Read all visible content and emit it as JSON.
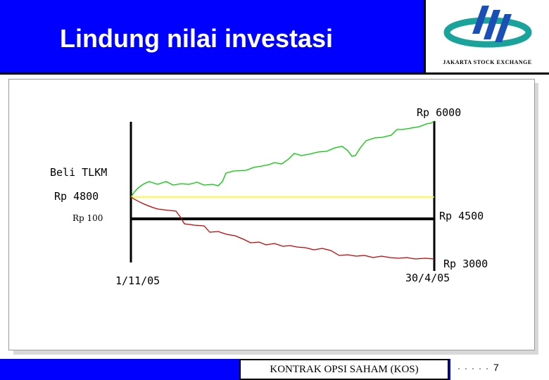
{
  "slide": {
    "title": "Lindung nilai investasi",
    "logo_caption": "JAKARTA STOCK EXCHANGE",
    "footer_text": "KONTRAK OPSI SAHAM (KOS)",
    "page_number": "7"
  },
  "diagram": {
    "labels": {
      "buy": "Beli TLKM",
      "buy_price": "Rp 4800",
      "premium": "Rp 100",
      "strike": "Rp 4500",
      "up_price": "Rp 6000",
      "down_price": "Rp 3000",
      "start_date": "1/11/05",
      "end_date": "30/4/05"
    },
    "colors": {
      "up_path": "#00cc00",
      "down_path": "#cc0000",
      "buy_level": "#ffff00",
      "strike_line": "#000000"
    }
  }
}
